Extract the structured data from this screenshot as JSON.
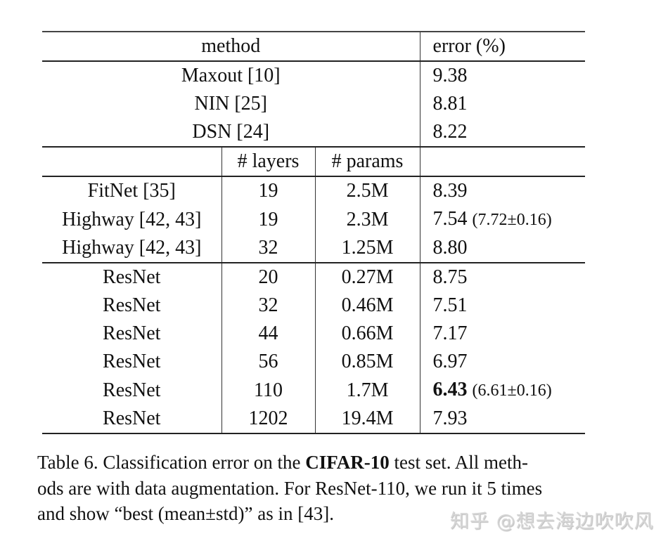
{
  "table": {
    "headers": {
      "method": "method",
      "error": "error (%)",
      "layers": "# layers",
      "params": "# params"
    },
    "group1": [
      {
        "method": "Maxout [10]",
        "error": "9.38"
      },
      {
        "method": "NIN [25]",
        "error": "8.81"
      },
      {
        "method": "DSN [24]",
        "error": "8.22"
      }
    ],
    "group2": [
      {
        "method": "FitNet [35]",
        "layers": "19",
        "params": "2.5M",
        "error": "8.39",
        "error_extra": ""
      },
      {
        "method": "Highway [42, 43]",
        "layers": "19",
        "params": "2.3M",
        "error": "7.54",
        "error_extra": "(7.72±0.16)"
      },
      {
        "method": "Highway [42, 43]",
        "layers": "32",
        "params": "1.25M",
        "error": "8.80",
        "error_extra": ""
      }
    ],
    "group3": [
      {
        "method": "ResNet",
        "layers": "20",
        "params": "0.27M",
        "error": "8.75",
        "error_extra": ""
      },
      {
        "method": "ResNet",
        "layers": "32",
        "params": "0.46M",
        "error": "7.51",
        "error_extra": ""
      },
      {
        "method": "ResNet",
        "layers": "44",
        "params": "0.66M",
        "error": "7.17",
        "error_extra": ""
      },
      {
        "method": "ResNet",
        "layers": "56",
        "params": "0.85M",
        "error": "6.97",
        "error_extra": ""
      },
      {
        "method": "ResNet",
        "layers": "110",
        "params": "1.7M",
        "error": "6.43",
        "error_extra": "(6.61±0.16)",
        "bold": true
      },
      {
        "method": "ResNet",
        "layers": "1202",
        "params": "19.4M",
        "error": "7.93",
        "error_extra": ""
      }
    ]
  },
  "caption": {
    "part1": "Table 6. Classification error on the ",
    "bold": "CIFAR-10",
    "part2": " test set.  All meth-",
    "line2": "ods are with data augmentation. For ResNet-110, we run it 5 times",
    "line3": "and show “best (mean±std)” as in [43]."
  },
  "watermark": "知乎 @想去海边吹吹风",
  "chart_data": {
    "type": "table",
    "title": "Table 6. Classification error on the CIFAR-10 test set. All methods are with data augmentation. For ResNet-110, we run it 5 times and show “best (mean±std)” as in [43].",
    "columns": [
      "method",
      "# layers",
      "# params",
      "error (%)"
    ],
    "rows": [
      [
        "Maxout [10]",
        "",
        "",
        "9.38"
      ],
      [
        "NIN [25]",
        "",
        "",
        "8.81"
      ],
      [
        "DSN [24]",
        "",
        "",
        "8.22"
      ],
      [
        "FitNet [35]",
        "19",
        "2.5M",
        "8.39"
      ],
      [
        "Highway [42, 43]",
        "19",
        "2.3M",
        "7.54 (7.72±0.16)"
      ],
      [
        "Highway [42, 43]",
        "32",
        "1.25M",
        "8.80"
      ],
      [
        "ResNet",
        "20",
        "0.27M",
        "8.75"
      ],
      [
        "ResNet",
        "32",
        "0.46M",
        "7.51"
      ],
      [
        "ResNet",
        "44",
        "0.66M",
        "7.17"
      ],
      [
        "ResNet",
        "56",
        "0.85M",
        "6.97"
      ],
      [
        "ResNet",
        "110",
        "1.7M",
        "6.43 (6.61±0.16)"
      ],
      [
        "ResNet",
        "1202",
        "19.4M",
        "7.93"
      ]
    ],
    "highlight": {
      "row": "ResNet-110",
      "value": "6.43",
      "style": "bold"
    }
  }
}
